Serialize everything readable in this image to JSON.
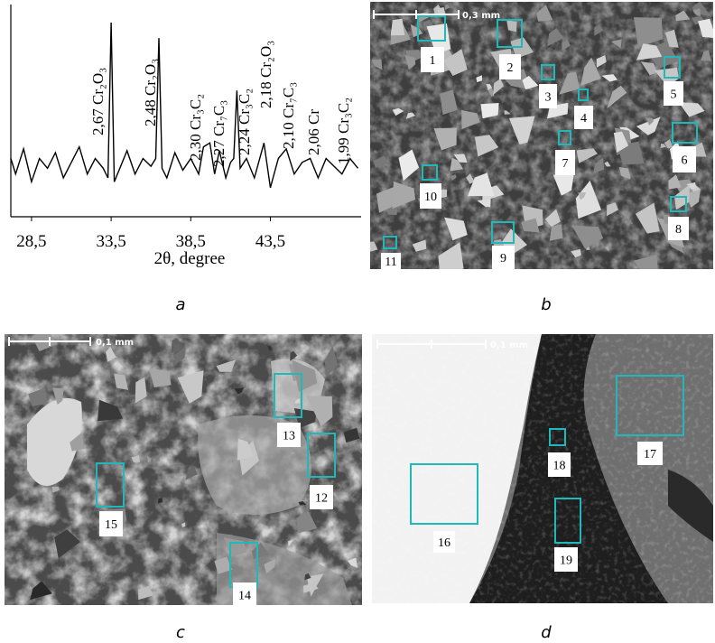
{
  "chart_data": {
    "type": "line",
    "x_label": "2θ, degree",
    "x": [
      27.2,
      27.5,
      28,
      28.5,
      29,
      29.5,
      30,
      30.5,
      31,
      31.5,
      32,
      32.5,
      33,
      33.3,
      33.5,
      33.7,
      34,
      34.5,
      35,
      35.5,
      36,
      36.3,
      36.5,
      36.7,
      37,
      37.5,
      38,
      38.5,
      39,
      39.3,
      39.7,
      40,
      40.3,
      40.7,
      41,
      41.2,
      41.4,
      41.6,
      42,
      42.5,
      43.1,
      43.5,
      44,
      44.5,
      45,
      45.5,
      46,
      46.5,
      47,
      47.5,
      48,
      48.5,
      49
    ],
    "values": [
      30,
      22,
      35,
      18,
      30,
      25,
      33,
      20,
      28,
      36,
      22,
      30,
      25,
      20,
      100,
      18,
      24,
      34,
      22,
      30,
      26,
      30,
      92,
      25,
      20,
      33,
      24,
      30,
      22,
      36,
      38,
      22,
      34,
      20,
      28,
      30,
      65,
      25,
      30,
      20,
      38,
      15,
      30,
      35,
      22,
      28,
      30,
      20,
      30,
      26,
      22,
      30,
      25
    ],
    "color": "#000000",
    "xlim": [
      27.2,
      49.2
    ],
    "ylim": [
      0,
      100
    ],
    "xticks": [
      {
        "value": 28.5,
        "label": "28,5"
      },
      {
        "value": 33.5,
        "label": "33,5"
      },
      {
        "value": 38.5,
        "label": "38,5"
      },
      {
        "value": 43.5,
        "label": "43,5"
      }
    ],
    "annotations": [
      "2,67 Cr₂O₃",
      "2,48 Cr₂O₃",
      "2,30 Cr₃C₂",
      "2,27 Cr₇C₃",
      "2,24 Cr₃C₂",
      "2,18 Cr₂O₃",
      "2,10 Cr₇C₃",
      "2,06 Cr",
      "1,99 Cr₃C₂"
    ]
  },
  "panels": {
    "a": {
      "caption": "a"
    },
    "b": {
      "caption": "b",
      "scale_bar": "0,3 mm",
      "regions": [
        "1",
        "2",
        "3",
        "4",
        "5",
        "6",
        "7",
        "8",
        "9",
        "10",
        "11"
      ]
    },
    "c": {
      "caption": "c",
      "scale_bar": "0,1 mm",
      "regions": [
        "12",
        "13",
        "14",
        "15"
      ]
    },
    "d": {
      "caption": "d",
      "scale_bar": "0,1 mm",
      "regions": [
        "16",
        "17",
        "18",
        "19"
      ]
    }
  }
}
